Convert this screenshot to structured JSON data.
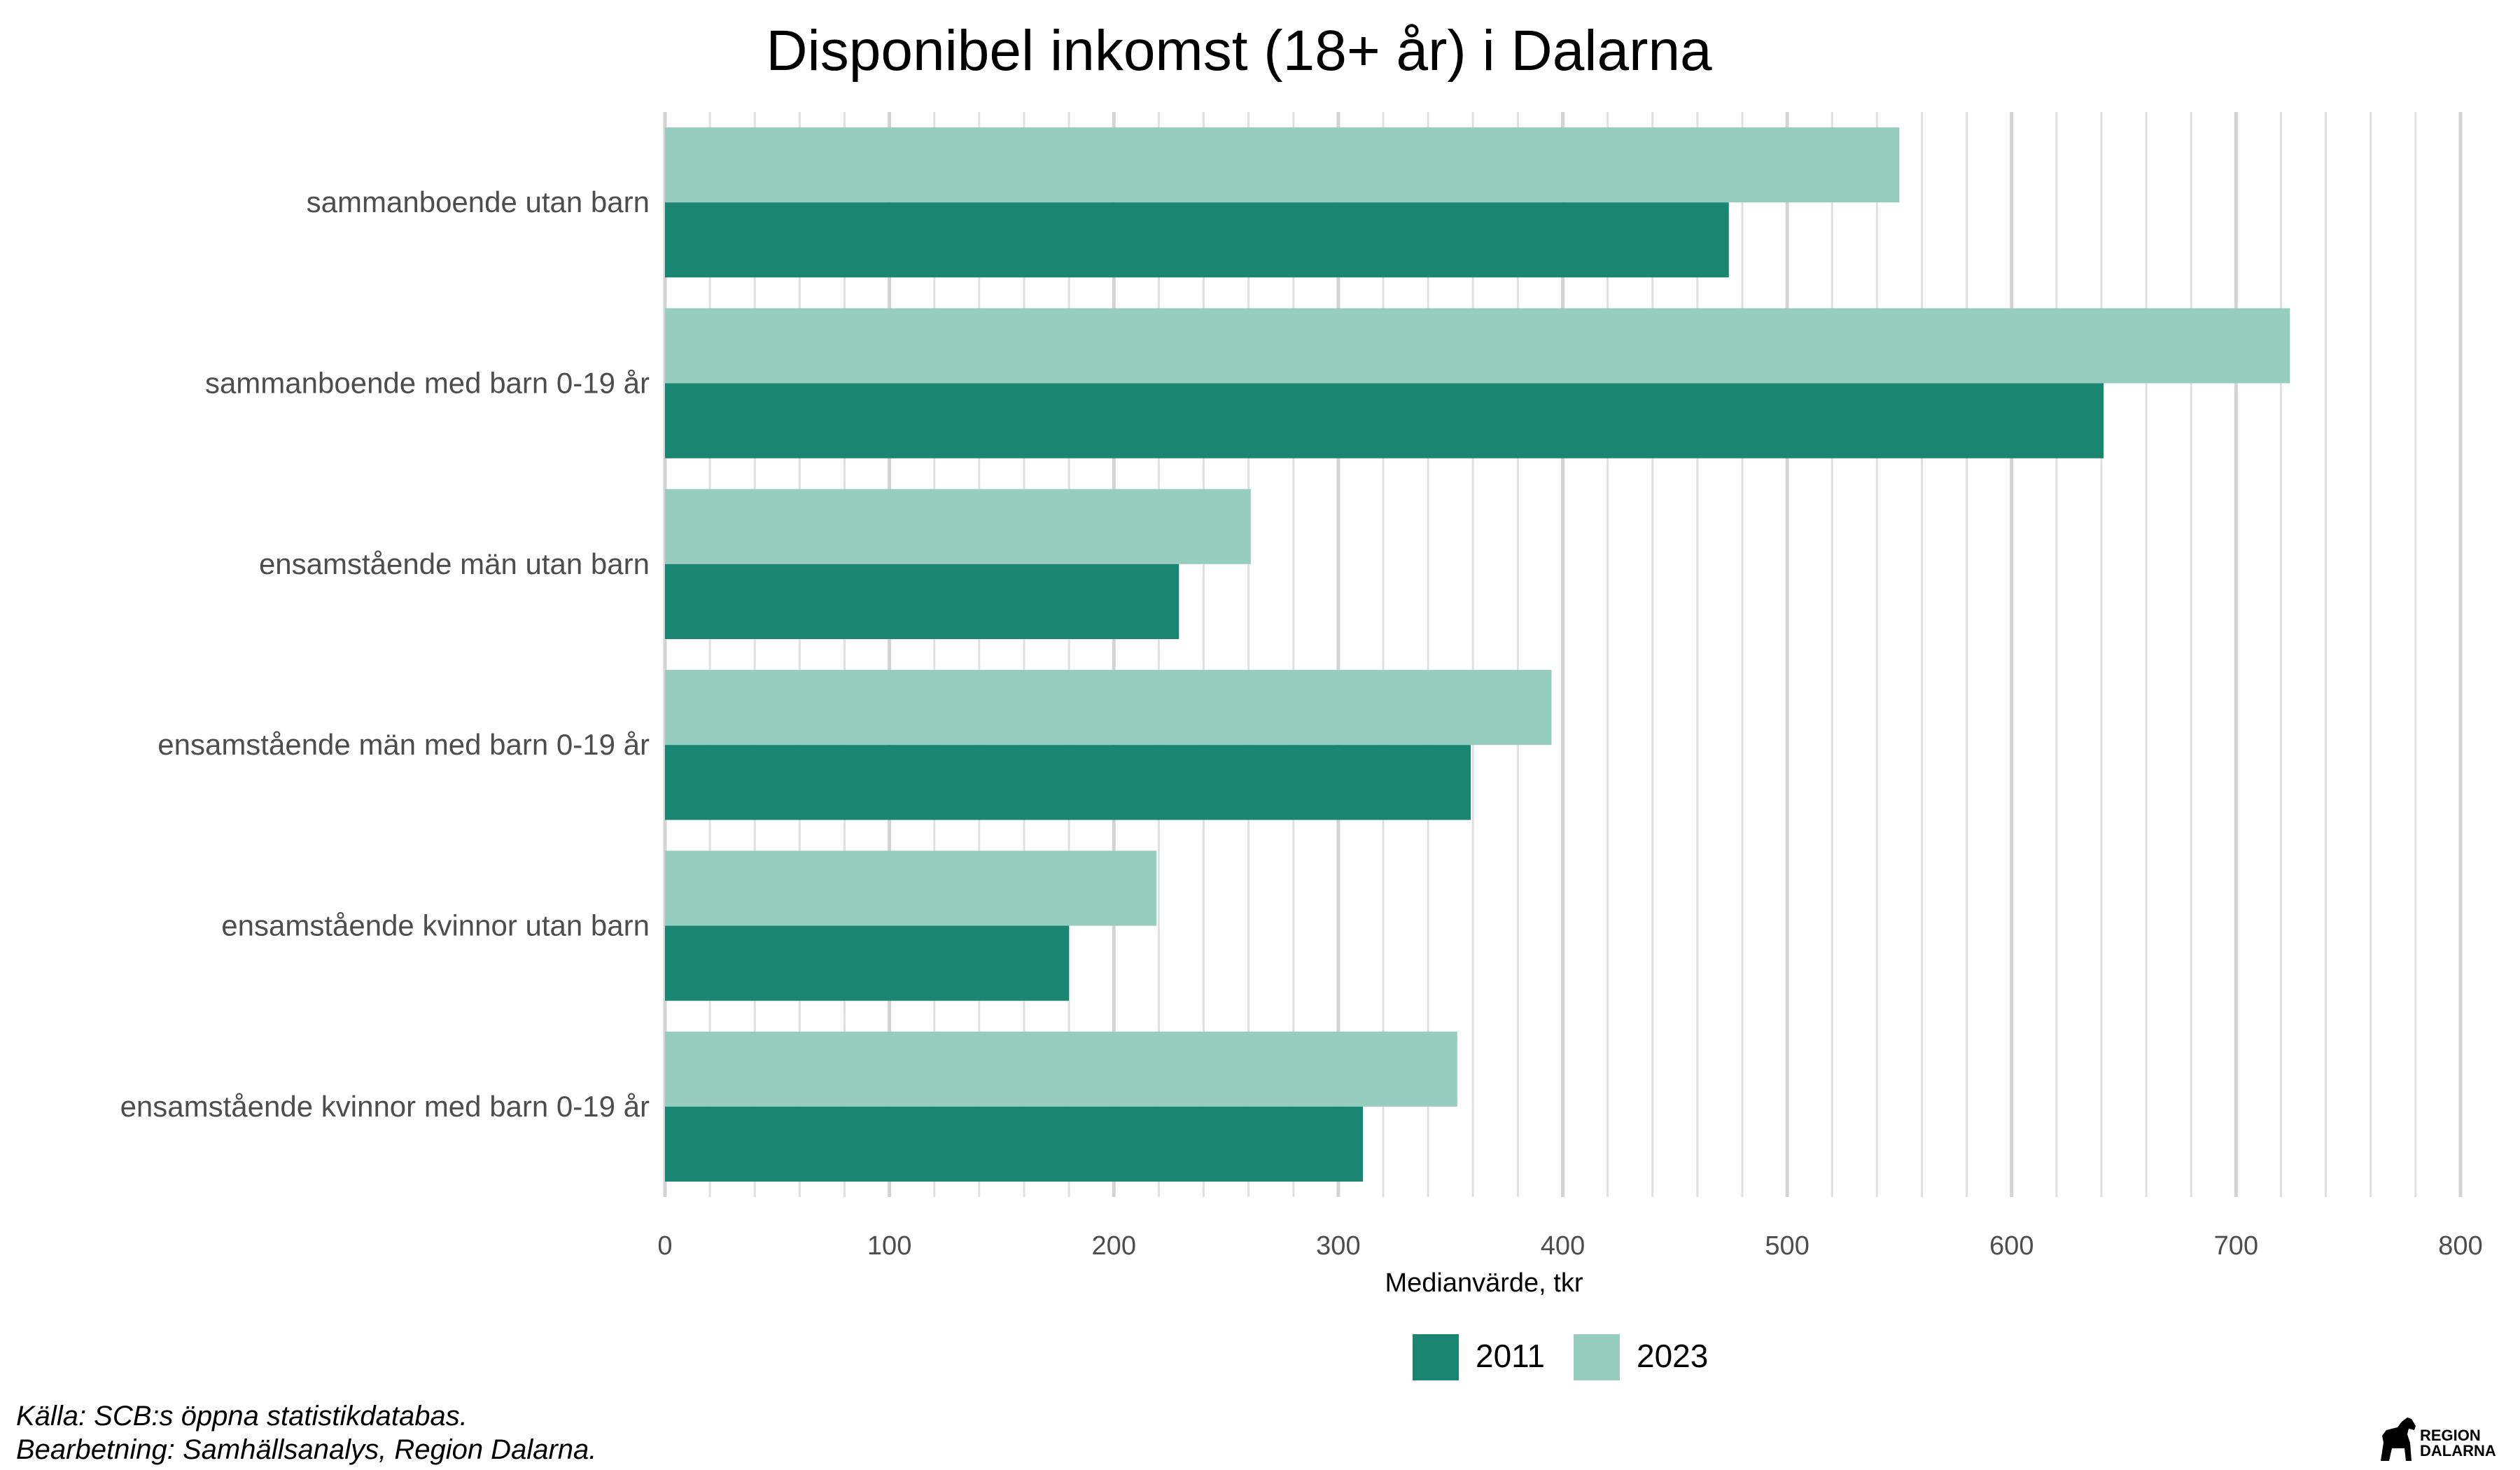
{
  "chart_data": {
    "type": "bar",
    "orientation": "horizontal",
    "title": "Disponibel inkomst (18+ år) i Dalarna",
    "xlabel": "Medianvärde, tkr",
    "ylabel": "",
    "xlim": [
      0,
      800
    ],
    "x_ticks": [
      "0",
      "100",
      "200",
      "300",
      "400",
      "500",
      "600",
      "700",
      "800"
    ],
    "categories": [
      "sammanboende utan barn",
      "sammanboende med barn 0-19 år",
      "ensamstående män utan barn",
      "ensamstående män med barn 0-19 år",
      "ensamstående kvinnor utan barn",
      "ensamstående kvinnor med barn 0-19 år"
    ],
    "series": [
      {
        "name": "2011",
        "color": "#1a8672",
        "values": [
          474,
          641,
          229,
          359,
          180,
          311
        ]
      },
      {
        "name": "2023",
        "color": "#96cdbf",
        "values": [
          550,
          724,
          261,
          395,
          219,
          353
        ]
      }
    ],
    "grid": "vertical",
    "legend_position": "bottom"
  },
  "footer": {
    "source": "Källa: SCB:s öppna statistikdatabas.",
    "processing": "Bearbetning: Samhällsanalys, Region Dalarna."
  },
  "logo": {
    "line1": "REGION",
    "line2": "DALARNA",
    "icon": "dala-horse-icon"
  }
}
